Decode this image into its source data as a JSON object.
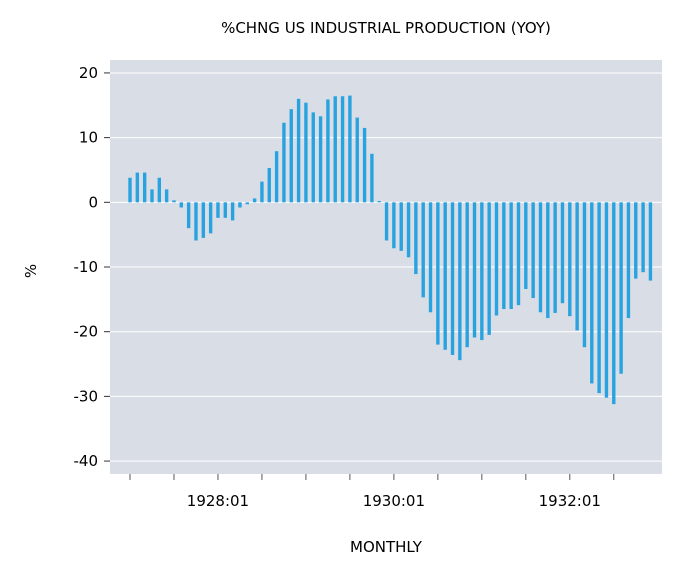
{
  "chart_data": {
    "type": "bar",
    "title": "%CHNG US INDUSTRIAL PRODUCTION (YOY)",
    "xlabel": "MONTHLY",
    "ylabel": "%",
    "ylim": [
      -42,
      22
    ],
    "yticks": [
      20,
      10,
      0,
      -10,
      -20,
      -30,
      -40
    ],
    "xtick_labels": [
      "1928:01",
      "1930:01",
      "1932:01"
    ],
    "grid": true,
    "bar_color": "#29a3e0",
    "plot_background": "#d9dee6",
    "series": [
      {
        "start": "1927:01",
        "end": "1932:12",
        "values": [
          3.8,
          4.6,
          4.6,
          2.0,
          3.8,
          2.0,
          0.3,
          -0.8,
          -4.0,
          -5.9,
          -5.5,
          -4.8,
          -2.4,
          -2.4,
          -2.8,
          -0.8,
          -0.3,
          0.6,
          3.2,
          5.3,
          7.9,
          12.3,
          14.4,
          16.0,
          15.4,
          13.9,
          13.3,
          15.9,
          16.4,
          16.4,
          16.5,
          13.1,
          11.5,
          7.5,
          0.2,
          -5.9,
          -7.1,
          -7.5,
          -8.5,
          -11.1,
          -14.7,
          -17.0,
          -22.0,
          -22.8,
          -23.6,
          -24.4,
          -22.4,
          -20.9,
          -21.3,
          -20.5,
          -17.5,
          -16.5,
          -16.5,
          -15.9,
          -13.4,
          -14.8,
          -17.0,
          -17.9,
          -17.1,
          -15.6,
          -17.6,
          -19.8,
          -22.4,
          -28.0,
          -29.5,
          -30.2,
          -31.2,
          -26.5,
          -17.9,
          -11.8,
          -10.8,
          -12.1
        ]
      }
    ]
  }
}
